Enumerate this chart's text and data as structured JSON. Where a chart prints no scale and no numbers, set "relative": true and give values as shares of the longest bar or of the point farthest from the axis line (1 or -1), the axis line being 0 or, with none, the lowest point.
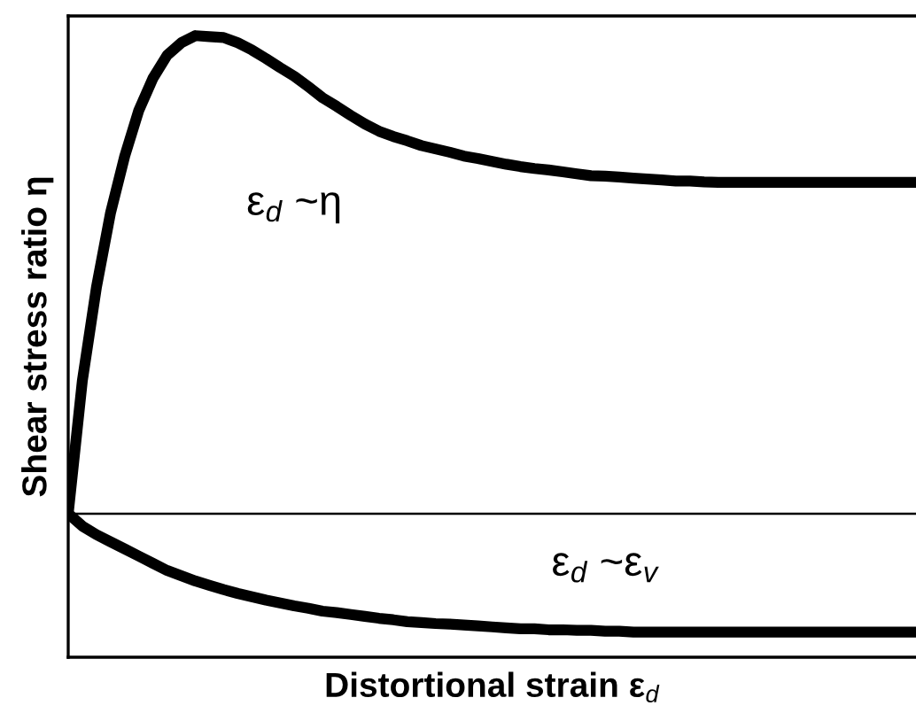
{
  "chart_data": {
    "type": "line",
    "relative": true,
    "line_style": "solid",
    "xlabel": "Distortional strain ε$_{d}$",
    "ylabel": "Shear stress ratio η",
    "categories": [
      null,
      null,
      null,
      null,
      null,
      null,
      null,
      null,
      null,
      null,
      null,
      null,
      null,
      null,
      null,
      null,
      null,
      null,
      null,
      null,
      null,
      null,
      null,
      null,
      null,
      null,
      null,
      null,
      null,
      null,
      null,
      null,
      null,
      null,
      null,
      null,
      null,
      null,
      null,
      null,
      null,
      null,
      null,
      null,
      null,
      null,
      null,
      null,
      null,
      null,
      null,
      null,
      null,
      null,
      null,
      null,
      null,
      null,
      null,
      null,
      null
    ],
    "series": [
      {
        "name": "ε$_{d}$ ~η",
        "color": "#000000",
        "values": [
          0,
          0.278,
          0.474,
          0.63,
          0.748,
          0.844,
          0.911,
          0.959,
          0.985,
          1.0,
          0.998,
          0.996,
          0.985,
          0.97,
          0.952,
          0.933,
          0.915,
          0.893,
          0.87,
          0.852,
          0.833,
          0.815,
          0.8,
          0.789,
          0.78,
          0.77,
          0.763,
          0.756,
          0.748,
          0.743,
          0.737,
          0.731,
          0.726,
          0.722,
          0.719,
          0.715,
          0.711,
          0.707,
          0.706,
          0.704,
          0.702,
          0.7,
          0.698,
          0.696,
          0.696,
          0.694,
          0.693,
          0.693,
          0.693,
          0.693,
          0.693,
          0.693,
          0.693,
          0.693,
          0.693,
          0.693,
          0.693,
          0.693,
          0.693,
          0.693,
          0.693
        ]
      },
      {
        "name": "ε$_{d}$ ~ε$_{v}$",
        "color": "#000000",
        "values": [
          0,
          -0.026,
          -0.044,
          -0.059,
          -0.074,
          -0.089,
          -0.104,
          -0.119,
          -0.13,
          -0.141,
          -0.15,
          -0.159,
          -0.167,
          -0.174,
          -0.181,
          -0.187,
          -0.193,
          -0.198,
          -0.204,
          -0.207,
          -0.211,
          -0.215,
          -0.219,
          -0.222,
          -0.226,
          -0.228,
          -0.23,
          -0.231,
          -0.233,
          -0.235,
          -0.237,
          -0.239,
          -0.241,
          -0.241,
          -0.243,
          -0.243,
          -0.244,
          -0.244,
          -0.246,
          -0.246,
          -0.248,
          -0.248,
          -0.248,
          -0.248,
          -0.248,
          -0.248,
          -0.248,
          -0.248,
          -0.248,
          -0.248,
          -0.248,
          -0.248,
          -0.248,
          -0.248,
          -0.248,
          -0.248,
          -0.248,
          -0.248,
          -0.248,
          -0.248,
          -0.248
        ]
      }
    ],
    "ref_lines": [
      {
        "axis": "y",
        "value": 0,
        "color": "#000000"
      }
    ]
  }
}
